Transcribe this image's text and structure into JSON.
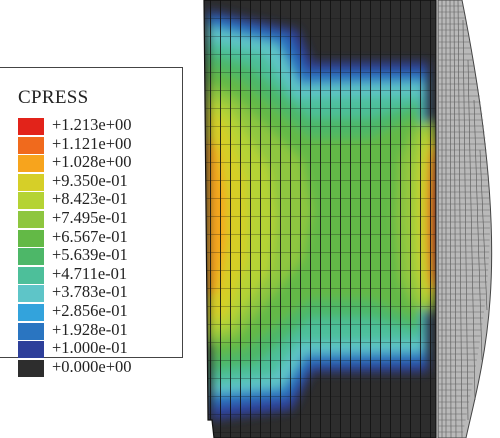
{
  "legend": {
    "title": "CPRESS",
    "items": [
      {
        "label": "+1.213e+00",
        "color": "#e2231a"
      },
      {
        "label": "+1.121e+00",
        "color": "#f06a1d"
      },
      {
        "label": "+1.028e+00",
        "color": "#f7a41d"
      },
      {
        "label": "+9.350e-01",
        "color": "#d6cf28"
      },
      {
        "label": "+8.423e-01",
        "color": "#b5d334"
      },
      {
        "label": "+7.495e-01",
        "color": "#8ec63f"
      },
      {
        "label": "+6.567e-01",
        "color": "#63b946"
      },
      {
        "label": "+5.639e-01",
        "color": "#4db768"
      },
      {
        "label": "+4.711e-01",
        "color": "#4dbf9a"
      },
      {
        "label": "+3.783e-01",
        "color": "#5ec5c8"
      },
      {
        "label": "+2.856e-01",
        "color": "#33a3dc"
      },
      {
        "label": "+1.928e-01",
        "color": "#2a75c1"
      },
      {
        "label": "+1.000e-01",
        "color": "#2e3f9a"
      },
      {
        "label": "+0.000e+00",
        "color": "#2d2d2d"
      }
    ]
  },
  "colors": {
    "background_dark": "#2d2d2d",
    "mesh_line": "#111111",
    "rim_gray": "#b9b9b9"
  }
}
